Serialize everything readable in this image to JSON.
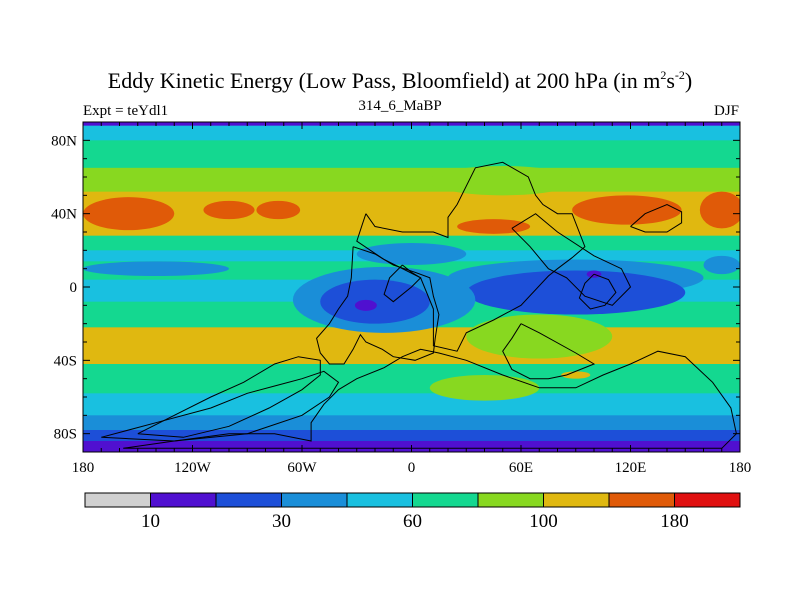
{
  "chart_data": {
    "type": "heatmap",
    "title_main": "Eddy Kinetic Energy (Low Pass, Bloomfield) at 200 hPa (in m",
    "title_sup1": "2",
    "title_mid": "s",
    "title_sup2": "-2",
    "title_end": ")",
    "subtitle": "314_6_MaBP",
    "left_label": "Expt = teYdl1",
    "right_label": "DJF",
    "x_ticks": [
      {
        "value": -180,
        "label": "180"
      },
      {
        "value": -120,
        "label": "120W"
      },
      {
        "value": -60,
        "label": "60W"
      },
      {
        "value": 0,
        "label": "0"
      },
      {
        "value": 60,
        "label": "60E"
      },
      {
        "value": 120,
        "label": "120E"
      },
      {
        "value": 180,
        "label": "180"
      }
    ],
    "y_ticks": [
      {
        "value": 80,
        "label": "80N"
      },
      {
        "value": 40,
        "label": "40N"
      },
      {
        "value": 0,
        "label": "0"
      },
      {
        "value": -40,
        "label": "40S"
      },
      {
        "value": -80,
        "label": "80S"
      }
    ],
    "xlim": [
      -180,
      180
    ],
    "ylim": [
      -90,
      90
    ],
    "colorbar": {
      "colors": [
        "#d0d0d0",
        "#5010d0",
        "#1d4fd8",
        "#1a8ed8",
        "#19c0e0",
        "#14d890",
        "#88d820",
        "#e0b810",
        "#e05a08",
        "#e01010"
      ],
      "tick_labels": [
        {
          "boundary": 1,
          "label": "10"
        },
        {
          "boundary": 3,
          "label": "30"
        },
        {
          "boundary": 5,
          "label": "60"
        },
        {
          "boundary": 7,
          "label": "100"
        },
        {
          "boundary": 9,
          "label": "180"
        }
      ]
    },
    "zonal_bands": [
      {
        "lat_top": 90,
        "lat_bottom": 88,
        "level": 1
      },
      {
        "lat_top": 88,
        "lat_bottom": 80,
        "level": 4
      },
      {
        "lat_top": 80,
        "lat_bottom": 65,
        "level": 5
      },
      {
        "lat_top": 65,
        "lat_bottom": 52,
        "level": 6
      },
      {
        "lat_top": 52,
        "lat_bottom": 28,
        "level": 7
      },
      {
        "lat_top": 28,
        "lat_bottom": 20,
        "level": 5
      },
      {
        "lat_top": 20,
        "lat_bottom": 14,
        "level": 4
      },
      {
        "lat_top": 14,
        "lat_bottom": 4,
        "level": 5
      },
      {
        "lat_top": 4,
        "lat_bottom": -8,
        "level": 4
      },
      {
        "lat_top": -8,
        "lat_bottom": -22,
        "level": 5
      },
      {
        "lat_top": -22,
        "lat_bottom": -42,
        "level": 7
      },
      {
        "lat_top": -42,
        "lat_bottom": -58,
        "level": 5
      },
      {
        "lat_top": -58,
        "lat_bottom": -70,
        "level": 4
      },
      {
        "lat_top": -70,
        "lat_bottom": -78,
        "level": 3
      },
      {
        "lat_top": -78,
        "lat_bottom": -84,
        "level": 2
      },
      {
        "lat_top": -84,
        "lat_bottom": -90,
        "level": 1
      }
    ],
    "features": [
      {
        "shape": "ellipse",
        "lon": -155,
        "lat": 40,
        "rlon": 25,
        "rlat": 9,
        "level": 8
      },
      {
        "shape": "ellipse",
        "lon": 170,
        "lat": 42,
        "rlon": 12,
        "rlat": 10,
        "level": 8
      },
      {
        "shape": "ellipse",
        "lon": -100,
        "lat": 42,
        "rlon": 14,
        "rlat": 5,
        "level": 8
      },
      {
        "shape": "ellipse",
        "lon": -73,
        "lat": 42,
        "rlon": 12,
        "rlat": 5,
        "level": 8
      },
      {
        "shape": "ellipse",
        "lon": 118,
        "lat": 42,
        "rlon": 30,
        "rlat": 8,
        "level": 8
      },
      {
        "shape": "ellipse",
        "lon": 45,
        "lat": 33,
        "rlon": 20,
        "rlat": 4,
        "level": 8
      },
      {
        "shape": "ellipse",
        "lon": 50,
        "lat": 58,
        "rlon": 40,
        "rlat": 8,
        "level": 6
      },
      {
        "shape": "ellipse",
        "lon": 0,
        "lat": 18,
        "rlon": 30,
        "rlat": 6,
        "level": 3
      },
      {
        "shape": "ellipse",
        "lon": -140,
        "lat": 10,
        "rlon": 40,
        "rlat": 4,
        "level": 3
      },
      {
        "shape": "ellipse",
        "lon": 90,
        "lat": 5,
        "rlon": 70,
        "rlat": 10,
        "level": 3
      },
      {
        "shape": "ellipse",
        "lon": 90,
        "lat": -3,
        "rlon": 60,
        "rlat": 12,
        "level": 2
      },
      {
        "shape": "ellipse",
        "lon": -15,
        "lat": -7,
        "rlon": 50,
        "rlat": 18,
        "level": 3
      },
      {
        "shape": "ellipse",
        "lon": -20,
        "lat": -8,
        "rlon": 30,
        "rlat": 12,
        "level": 2
      },
      {
        "shape": "ellipse",
        "lon": -25,
        "lat": -10,
        "rlon": 6,
        "rlat": 3,
        "level": 1
      },
      {
        "shape": "ellipse",
        "lon": 70,
        "lat": -27,
        "rlon": 40,
        "rlat": 12,
        "level": 6
      },
      {
        "shape": "ellipse",
        "lon": 40,
        "lat": -55,
        "rlon": 30,
        "rlat": 7,
        "level": 6
      },
      {
        "shape": "ellipse",
        "lon": 90,
        "lat": -48,
        "rlon": 8,
        "rlat": 2,
        "level": 7
      },
      {
        "shape": "ellipse",
        "lon": 100,
        "lat": 7,
        "rlon": 4,
        "rlat": 2,
        "level": 1
      },
      {
        "shape": "ellipse",
        "lon": 170,
        "lat": 12,
        "rlon": 10,
        "rlat": 5,
        "level": 3
      }
    ],
    "continent_outlines": [
      [
        [
          -158,
          -88
        ],
        [
          -130,
          -84
        ],
        [
          -100,
          -80
        ],
        [
          -75,
          -80
        ],
        [
          -55,
          -84
        ],
        [
          -55,
          -74
        ],
        [
          -48,
          -64
        ],
        [
          -40,
          -56
        ],
        [
          -30,
          -50
        ],
        [
          -15,
          -44
        ],
        [
          -5,
          -38
        ],
        [
          5,
          -34
        ],
        [
          15,
          -36
        ],
        [
          30,
          -40
        ],
        [
          50,
          -48
        ],
        [
          70,
          -55
        ],
        [
          90,
          -55
        ],
        [
          105,
          -48
        ],
        [
          120,
          -42
        ],
        [
          135,
          -35
        ],
        [
          150,
          -38
        ],
        [
          165,
          -52
        ],
        [
          175,
          -66
        ],
        [
          178,
          -80
        ],
        [
          170,
          -88
        ],
        [
          120,
          -88
        ],
        [
          60,
          -88
        ],
        [
          0,
          -88
        ],
        [
          -80,
          -88
        ],
        [
          -158,
          -88
        ]
      ],
      [
        [
          -150,
          -80
        ],
        [
          -130,
          -70
        ],
        [
          -110,
          -60
        ],
        [
          -92,
          -52
        ],
        [
          -75,
          -42
        ],
        [
          -62,
          -38
        ],
        [
          -50,
          -40
        ],
        [
          -50,
          -48
        ],
        [
          -60,
          -56
        ],
        [
          -78,
          -66
        ],
        [
          -100,
          -76
        ],
        [
          -125,
          -82
        ],
        [
          -150,
          -80
        ]
      ],
      [
        [
          -170,
          -82
        ],
        [
          -140,
          -74
        ],
        [
          -110,
          -66
        ],
        [
          -90,
          -58
        ],
        [
          -75,
          -54
        ],
        [
          -60,
          -50
        ],
        [
          -48,
          -46
        ],
        [
          -40,
          -52
        ],
        [
          -45,
          -60
        ],
        [
          -60,
          -70
        ],
        [
          -90,
          -80
        ],
        [
          -130,
          -84
        ],
        [
          -170,
          -82
        ]
      ],
      [
        [
          -32,
          22
        ],
        [
          -20,
          18
        ],
        [
          -10,
          12
        ],
        [
          2,
          8
        ],
        [
          10,
          5
        ],
        [
          12,
          -5
        ],
        [
          15,
          -15
        ],
        [
          13,
          -28
        ],
        [
          12,
          -36
        ],
        [
          2,
          -40
        ],
        [
          -10,
          -38
        ],
        [
          -16,
          -34
        ],
        [
          -25,
          -30
        ],
        [
          -28,
          -26
        ],
        [
          -32,
          -34
        ],
        [
          -37,
          -42
        ],
        [
          -45,
          -42
        ],
        [
          -50,
          -36
        ],
        [
          -52,
          -28
        ],
        [
          -45,
          -20
        ],
        [
          -40,
          -12
        ],
        [
          -35,
          -5
        ],
        [
          -33,
          5
        ],
        [
          -32,
          22
        ]
      ],
      [
        [
          -25,
          40
        ],
        [
          -20,
          33
        ],
        [
          -5,
          30
        ],
        [
          12,
          30
        ],
        [
          20,
          27
        ],
        [
          20,
          38
        ],
        [
          25,
          45
        ],
        [
          35,
          65
        ],
        [
          50,
          68
        ],
        [
          64,
          60
        ],
        [
          68,
          50
        ],
        [
          72,
          45
        ],
        [
          80,
          40
        ],
        [
          88,
          40
        ],
        [
          95,
          22
        ],
        [
          88,
          16
        ],
        [
          80,
          10
        ],
        [
          75,
          6
        ],
        [
          60,
          -10
        ],
        [
          45,
          -18
        ],
        [
          30,
          -25
        ],
        [
          25,
          -35
        ],
        [
          12,
          -32
        ],
        [
          12,
          -12
        ],
        [
          5,
          5
        ],
        [
          -15,
          15
        ],
        [
          -30,
          25
        ],
        [
          -27,
          34
        ],
        [
          -25,
          40
        ]
      ],
      [
        [
          55,
          32
        ],
        [
          68,
          40
        ],
        [
          80,
          30
        ],
        [
          100,
          17
        ],
        [
          115,
          10
        ],
        [
          120,
          0
        ],
        [
          110,
          -10
        ],
        [
          95,
          -5
        ],
        [
          85,
          5
        ],
        [
          75,
          10
        ],
        [
          65,
          22
        ],
        [
          55,
          32
        ]
      ],
      [
        [
          100,
          7
        ],
        [
          108,
          4
        ],
        [
          112,
          -3
        ],
        [
          106,
          -10
        ],
        [
          98,
          -12
        ],
        [
          92,
          -6
        ],
        [
          95,
          2
        ],
        [
          100,
          7
        ]
      ],
      [
        [
          120,
          33
        ],
        [
          128,
          40
        ],
        [
          140,
          45
        ],
        [
          148,
          41
        ],
        [
          148,
          35
        ],
        [
          140,
          30
        ],
        [
          128,
          30
        ],
        [
          120,
          33
        ]
      ],
      [
        [
          60,
          -20
        ],
        [
          70,
          -25
        ],
        [
          90,
          -36
        ],
        [
          100,
          -42
        ],
        [
          85,
          -48
        ],
        [
          75,
          -50
        ],
        [
          65,
          -50
        ],
        [
          55,
          -45
        ],
        [
          50,
          -35
        ],
        [
          55,
          -28
        ],
        [
          60,
          -20
        ]
      ],
      [
        [
          -5,
          12
        ],
        [
          0,
          8
        ],
        [
          5,
          5
        ],
        [
          0,
          0
        ],
        [
          -10,
          -8
        ],
        [
          -15,
          -4
        ],
        [
          -12,
          5
        ],
        [
          -5,
          12
        ]
      ]
    ]
  }
}
